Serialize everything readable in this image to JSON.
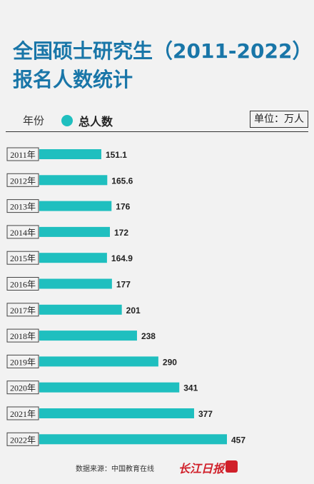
{
  "title": {
    "line1": "全国硕士研究生（2011-2022）",
    "line2": "报名人数统计"
  },
  "header": {
    "year_label": "年份",
    "legend_label": "总人数",
    "unit": "单位：万人"
  },
  "footer": {
    "source": "数据来源：中国教育在线",
    "brand": "长江日报"
  },
  "colors": {
    "bar": "#1fbfbf",
    "title": "#1976a8",
    "brand": "#d0202a"
  },
  "chart_data": {
    "type": "bar",
    "orientation": "horizontal",
    "categories": [
      "2011年",
      "2012年",
      "2013年",
      "2014年",
      "2015年",
      "2016年",
      "2017年",
      "2018年",
      "2019年",
      "2020年",
      "2021年",
      "2022年"
    ],
    "series": [
      {
        "name": "总人数",
        "values": [
          151.1,
          165.6,
          176,
          172,
          164.9,
          177,
          201,
          238,
          290,
          341,
          377,
          457
        ]
      }
    ],
    "data_labels": [
      "151.1",
      "165.6",
      "176",
      "172",
      "164.9",
      "177",
      "201",
      "238",
      "290",
      "341",
      "377",
      "457"
    ],
    "unit": "万人"
  }
}
